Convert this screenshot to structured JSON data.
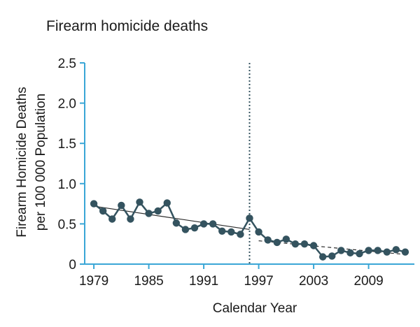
{
  "chart_data": {
    "type": "line",
    "title": "Firearm homicide deaths",
    "xlabel": "Calendar Year",
    "ylabel_lines": [
      "Firearm Homicide Deaths",
      "per 100 000 Population"
    ],
    "x_ticks": [
      1979,
      1985,
      1991,
      1997,
      2003,
      2009
    ],
    "y_ticks": [
      "0",
      "0.5",
      "1.0",
      "1.5",
      "2.0",
      "2.5"
    ],
    "xlim": [
      1978,
      2014
    ],
    "ylim": [
      0,
      2.5
    ],
    "grid": false,
    "vertical_reference_line": {
      "x": 1996,
      "style": "dotted"
    },
    "series": [
      {
        "points": [
          {
            "x": 1979,
            "y": 0.75
          },
          {
            "x": 1980,
            "y": 0.66
          },
          {
            "x": 1981,
            "y": 0.56
          },
          {
            "x": 1982,
            "y": 0.73
          },
          {
            "x": 1983,
            "y": 0.56
          },
          {
            "x": 1984,
            "y": 0.77
          },
          {
            "x": 1985,
            "y": 0.63
          },
          {
            "x": 1986,
            "y": 0.66
          },
          {
            "x": 1987,
            "y": 0.76
          },
          {
            "x": 1988,
            "y": 0.51
          },
          {
            "x": 1989,
            "y": 0.43
          },
          {
            "x": 1990,
            "y": 0.45
          },
          {
            "x": 1991,
            "y": 0.5
          },
          {
            "x": 1992,
            "y": 0.5
          },
          {
            "x": 1993,
            "y": 0.41
          },
          {
            "x": 1994,
            "y": 0.4
          },
          {
            "x": 1995,
            "y": 0.37
          },
          {
            "x": 1996,
            "y": 0.57
          },
          {
            "x": 1997,
            "y": 0.4
          },
          {
            "x": 1998,
            "y": 0.3
          },
          {
            "x": 1999,
            "y": 0.27
          },
          {
            "x": 2000,
            "y": 0.31
          },
          {
            "x": 2001,
            "y": 0.25
          },
          {
            "x": 2002,
            "y": 0.25
          },
          {
            "x": 2003,
            "y": 0.23
          },
          {
            "x": 2004,
            "y": 0.09
          },
          {
            "x": 2005,
            "y": 0.1
          },
          {
            "x": 2006,
            "y": 0.17
          },
          {
            "x": 2007,
            "y": 0.14
          },
          {
            "x": 2008,
            "y": 0.13
          },
          {
            "x": 2009,
            "y": 0.17
          },
          {
            "x": 2010,
            "y": 0.17
          },
          {
            "x": 2011,
            "y": 0.15
          },
          {
            "x": 2012,
            "y": 0.18
          },
          {
            "x": 2013,
            "y": 0.15
          }
        ]
      }
    ],
    "trend_lines": [
      {
        "style": "solid",
        "from": {
          "x": 1979,
          "y": 0.72
        },
        "to": {
          "x": 1996,
          "y": 0.43
        }
      },
      {
        "style": "dashed",
        "from": {
          "x": 1997,
          "y": 0.29
        },
        "to": {
          "x": 2013,
          "y": 0.12
        }
      }
    ],
    "colors": {
      "series": "#34535f",
      "trend": "#2b2b2b",
      "axis": "#3aa6d6",
      "text": "#1a1a1a"
    }
  }
}
